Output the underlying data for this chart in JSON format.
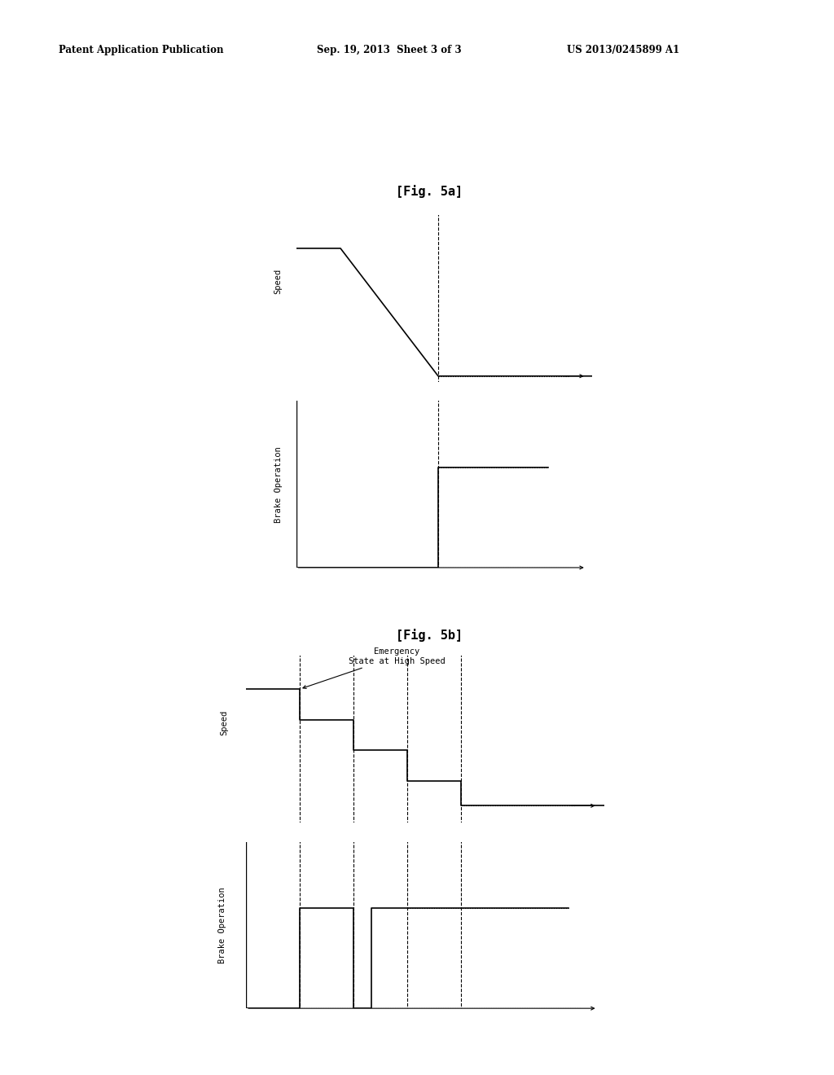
{
  "background_color": "#ffffff",
  "header_left": "Patent Application Publication",
  "header_center": "Sep. 19, 2013  Sheet 3 of 3",
  "header_right": "US 2013/0245899 A1",
  "fig5a_title": "[Fig. 5a]",
  "fig5b_title": "[Fig. 5b]",
  "fig5b_annotation": "Emergency\nState at High Speed",
  "ylabel_speed": "Speed",
  "ylabel_brake": "Brake Operation"
}
